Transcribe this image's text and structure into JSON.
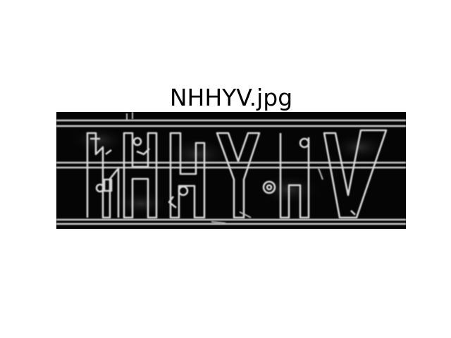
{
  "figure": {
    "title": "NHHYV.jpg"
  }
}
